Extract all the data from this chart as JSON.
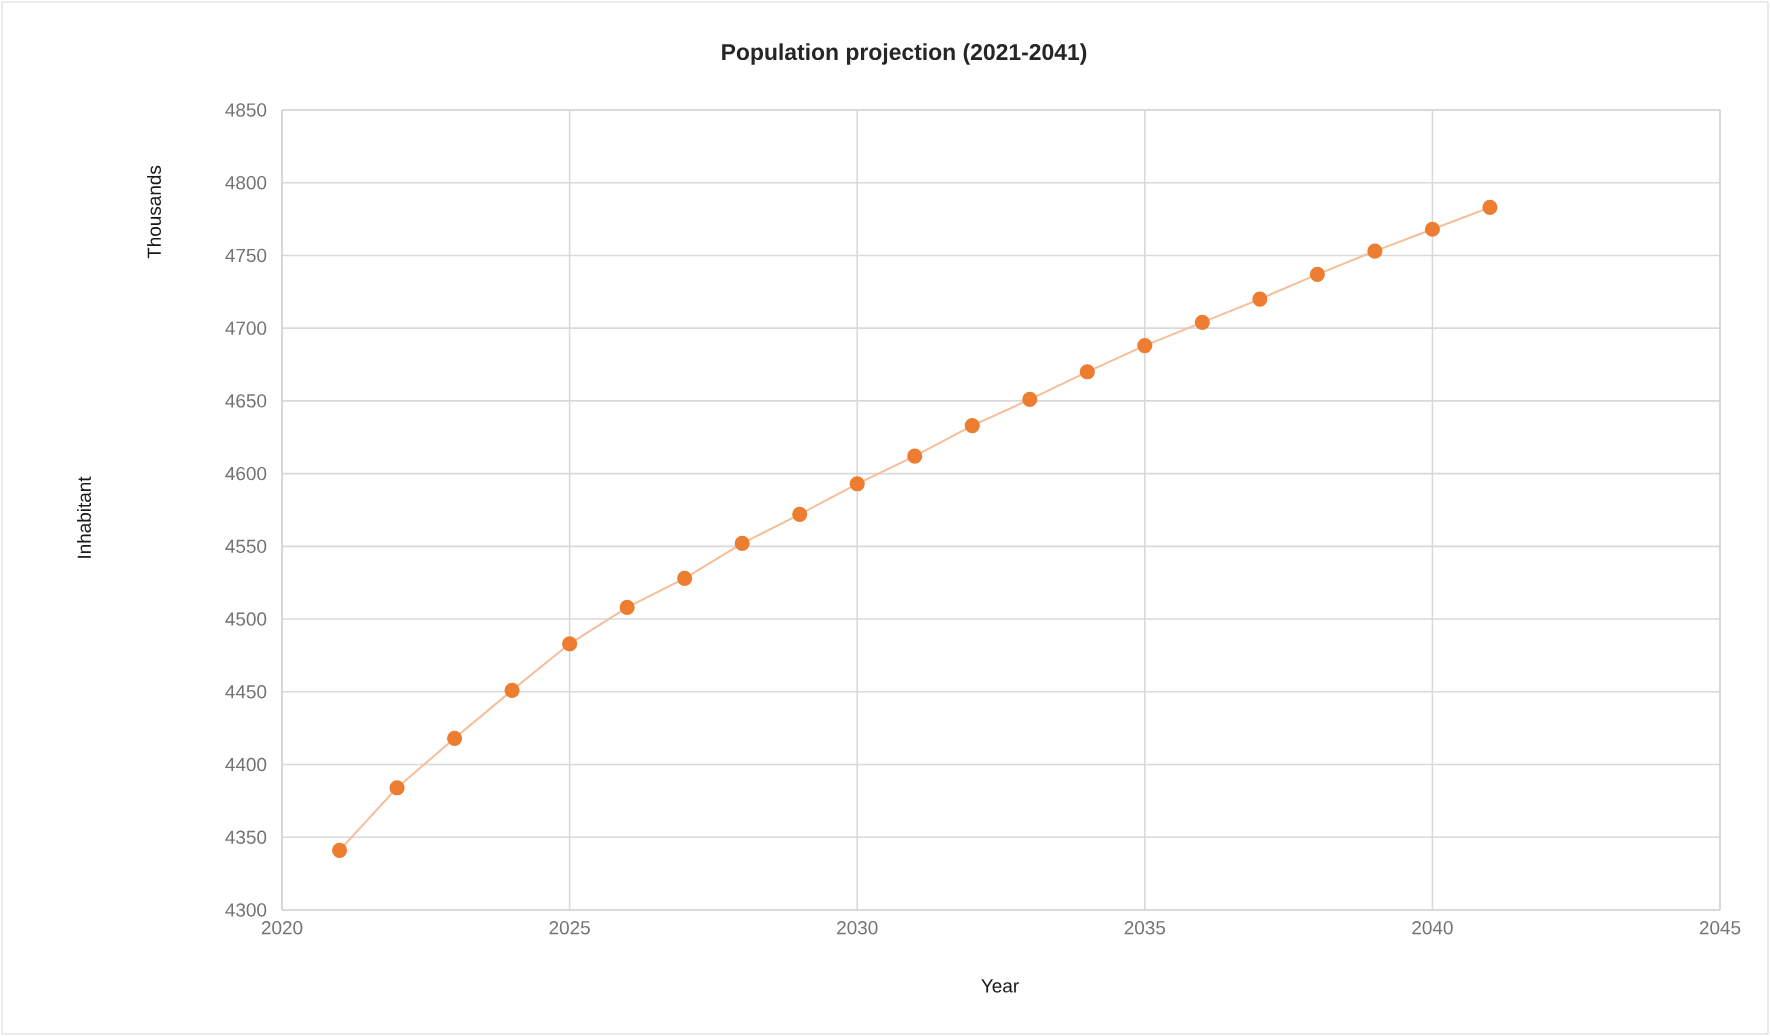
{
  "chart_data": {
    "type": "line",
    "title": "Population projection (2021-2041)",
    "xlabel": "Year",
    "ylabel": "Thousands",
    "annotations": [
      "Inhabitant"
    ],
    "x": [
      2021,
      2022,
      2023,
      2024,
      2025,
      2026,
      2027,
      2028,
      2029,
      2030,
      2031,
      2032,
      2033,
      2034,
      2035,
      2036,
      2037,
      2038,
      2039,
      2040,
      2041
    ],
    "series": [
      {
        "color": "#ed7d31",
        "values": [
          4341,
          4384,
          4418,
          4451,
          4483,
          4508,
          4528,
          4552,
          4572,
          4593,
          4612,
          4633,
          4651,
          4670,
          4688,
          4704,
          4720,
          4737,
          4753,
          4768,
          4783
        ]
      }
    ],
    "xlim": [
      2020,
      2045
    ],
    "xticks": [
      2020,
      2025,
      2030,
      2035,
      2040,
      2045
    ],
    "ylim": [
      4300,
      4850
    ],
    "yticks": [
      4300,
      4350,
      4400,
      4450,
      4500,
      4550,
      4600,
      4650,
      4700,
      4750,
      4800,
      4850
    ],
    "grid": true,
    "marker": "circle",
    "line_style": "solid"
  }
}
